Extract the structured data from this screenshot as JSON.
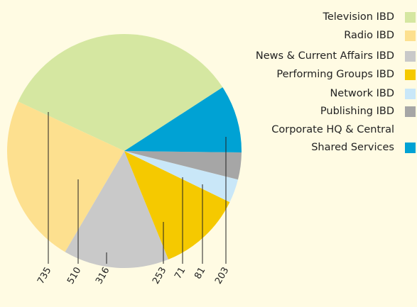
{
  "chart_data": {
    "type": "pie",
    "categories": [
      "Television IBD",
      "Radio IBD",
      "News & Current Affairs IBD",
      "Performing Groups IBD",
      "Network IBD",
      "Publishing IBD",
      "Corporate HQ & Central Shared Services"
    ],
    "values": [
      735,
      510,
      316,
      253,
      71,
      81,
      203
    ],
    "colors": [
      "#d5e7a1",
      "#fde08f",
      "#c9c9c9",
      "#f5c900",
      "#c9e7f8",
      "#a6a6a6",
      "#00a2d4"
    ]
  }
}
